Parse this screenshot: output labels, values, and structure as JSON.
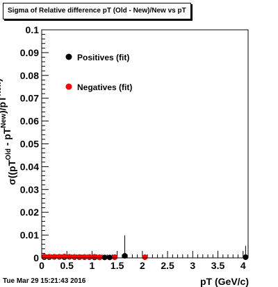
{
  "title": "Sigma of Relative difference pT (Old - New)/New vs pT",
  "timestamp": "Tue Mar 29 15:21:43 2016",
  "chart_data": {
    "type": "scatter",
    "xlabel": "pT (GeV/c)",
    "ylabel": "σ((pT^Old - pT^New)/pT^New)",
    "xlim": [
      0,
      4.1
    ],
    "ylim": [
      0,
      0.1
    ],
    "x_ticks": [
      "0",
      "0.5",
      "1",
      "1.5",
      "2",
      "2.5",
      "3",
      "3.5",
      "4"
    ],
    "y_ticks": [
      "0",
      "0.01",
      "0.02",
      "0.03",
      "0.04",
      "0.05",
      "0.06",
      "0.07",
      "0.08",
      "0.09",
      "0.1"
    ],
    "legend_position": "top-left",
    "series": [
      {
        "name": "Positives (fit)",
        "color": "#000000",
        "points": [
          {
            "x": 0.05,
            "y": 0.0003,
            "err": 0.001
          },
          {
            "x": 0.15,
            "y": 0.0003,
            "err": 0.0012
          },
          {
            "x": 0.25,
            "y": 0.0004,
            "err": 0.0013
          },
          {
            "x": 0.35,
            "y": 0.0004,
            "err": 0.0011
          },
          {
            "x": 0.45,
            "y": 0.0003,
            "err": 0.0012
          },
          {
            "x": 0.55,
            "y": 0.0004,
            "err": 0.001
          },
          {
            "x": 0.65,
            "y": 0.0003,
            "err": 0.0013
          },
          {
            "x": 0.75,
            "y": 0.0003,
            "err": 0.0011
          },
          {
            "x": 0.85,
            "y": 0.0003,
            "err": 0.001
          },
          {
            "x": 0.95,
            "y": 0.0003,
            "err": 0.0012
          },
          {
            "x": 1.05,
            "y": 0.0002,
            "err": 0.001
          },
          {
            "x": 1.15,
            "y": 0.0002,
            "err": 0.0011
          },
          {
            "x": 1.25,
            "y": 0.0002,
            "err": 0.0005
          },
          {
            "x": 1.35,
            "y": 0.0002,
            "err": 0.0004
          },
          {
            "x": 1.45,
            "y": 0.0003,
            "err": 0.0004
          },
          {
            "x": 1.65,
            "y": 0.0009,
            "err": 0.009
          },
          {
            "x": 4.05,
            "y": 0.0003,
            "err": 0.005
          }
        ]
      },
      {
        "name": "Negatives (fit)",
        "color": "#ff0000",
        "points": [
          {
            "x": 0.05,
            "y": 0.0006,
            "err": 0.001
          },
          {
            "x": 0.15,
            "y": 0.0005,
            "err": 0.0009
          },
          {
            "x": 0.25,
            "y": 0.0005,
            "err": 0.0008
          },
          {
            "x": 0.35,
            "y": 0.0005,
            "err": 0.0008
          },
          {
            "x": 0.45,
            "y": 0.0006,
            "err": 0.0007
          },
          {
            "x": 0.55,
            "y": 0.0005,
            "err": 0.0007
          },
          {
            "x": 0.65,
            "y": 0.0004,
            "err": 0.0006
          },
          {
            "x": 0.75,
            "y": 0.0004,
            "err": 0.0006
          },
          {
            "x": 0.85,
            "y": 0.0004,
            "err": 0.0006
          },
          {
            "x": 0.95,
            "y": 0.0004,
            "err": 0.0006
          },
          {
            "x": 1.05,
            "y": 0.0005,
            "err": 0.0006
          },
          {
            "x": 1.15,
            "y": 0.0003,
            "err": 0.0005
          },
          {
            "x": 1.45,
            "y": 0.0003,
            "err": 0.0004
          },
          {
            "x": 2.05,
            "y": 0.0003,
            "err": 0.0003
          }
        ]
      }
    ]
  }
}
